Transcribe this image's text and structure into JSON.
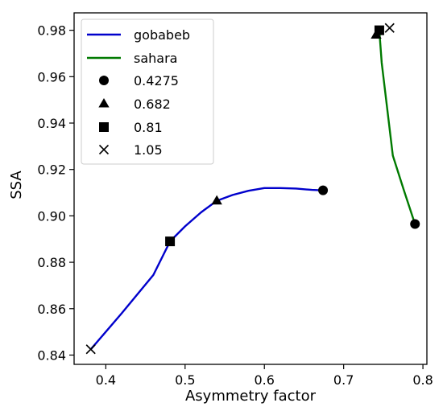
{
  "chart_data": {
    "type": "line",
    "xlabel": "Asymmetry factor",
    "ylabel": "SSA",
    "xlim": [
      0.36,
      0.805
    ],
    "ylim": [
      0.836,
      0.9875
    ],
    "xticks": [
      0.4,
      0.5,
      0.6,
      0.7,
      0.8
    ],
    "yticks": [
      0.84,
      0.86,
      0.88,
      0.9,
      0.92,
      0.94,
      0.96,
      0.98
    ],
    "xtick_labels": [
      "0.4",
      "0.5",
      "0.6",
      "0.7",
      "0.8"
    ],
    "ytick_labels": [
      "0.84",
      "0.86",
      "0.88",
      "0.90",
      "0.92",
      "0.94",
      "0.96",
      "0.98"
    ],
    "grid": false,
    "legend_position": "top-left",
    "series": [
      {
        "name": "gobabeb",
        "color": "#0000cc",
        "points": [
          [
            0.381,
            0.8425
          ],
          [
            0.42,
            0.858
          ],
          [
            0.46,
            0.8745
          ],
          [
            0.481,
            0.889
          ],
          [
            0.5,
            0.8955
          ],
          [
            0.52,
            0.9015
          ],
          [
            0.54,
            0.9065
          ],
          [
            0.56,
            0.909
          ],
          [
            0.58,
            0.9108
          ],
          [
            0.6,
            0.912
          ],
          [
            0.62,
            0.912
          ],
          [
            0.64,
            0.9118
          ],
          [
            0.66,
            0.9112
          ],
          [
            0.674,
            0.911
          ]
        ]
      },
      {
        "name": "sahara",
        "color": "#007a00",
        "points": [
          [
            0.741,
            0.978
          ],
          [
            0.745,
            0.98
          ],
          [
            0.748,
            0.966
          ],
          [
            0.755,
            0.946
          ],
          [
            0.762,
            0.926
          ],
          [
            0.776,
            0.911
          ],
          [
            0.79,
            0.8965
          ]
        ]
      }
    ],
    "markers": [
      {
        "label": "0.4275",
        "shape": "circle",
        "points": [
          [
            0.674,
            0.911
          ],
          [
            0.79,
            0.8965
          ]
        ]
      },
      {
        "label": "0.682",
        "shape": "triangle",
        "points": [
          [
            0.54,
            0.9065
          ],
          [
            0.741,
            0.978
          ]
        ]
      },
      {
        "label": "0.81",
        "shape": "square",
        "points": [
          [
            0.481,
            0.889
          ],
          [
            0.745,
            0.98
          ]
        ]
      },
      {
        "label": "1.05",
        "shape": "x",
        "points": [
          [
            0.381,
            0.8425
          ],
          [
            0.758,
            0.981
          ]
        ]
      }
    ]
  }
}
